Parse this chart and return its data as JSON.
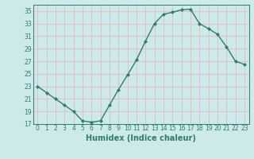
{
  "x": [
    0,
    1,
    2,
    3,
    4,
    5,
    6,
    7,
    8,
    9,
    10,
    11,
    12,
    13,
    14,
    15,
    16,
    17,
    18,
    19,
    20,
    21,
    22,
    23
  ],
  "y": [
    23,
    22,
    21,
    20,
    19,
    17.5,
    17.3,
    17.5,
    20,
    22.5,
    24.8,
    27.2,
    30.2,
    33,
    34.5,
    34.8,
    35.2,
    35.3,
    33,
    32.2,
    31.3,
    29.3,
    27,
    26.5
  ],
  "line_color": "#2d7d6e",
  "marker_color": "#2d7d6e",
  "bg_color": "#cceaea",
  "grid_color": "#e8b8b8",
  "xlabel": "Humidex (Indice chaleur)",
  "ylabel": "",
  "ylim": [
    17,
    36
  ],
  "xlim": [
    -0.5,
    23.5
  ],
  "yticks": [
    17,
    19,
    21,
    23,
    25,
    27,
    29,
    31,
    33,
    35
  ],
  "xticks": [
    0,
    1,
    2,
    3,
    4,
    5,
    6,
    7,
    8,
    9,
    10,
    11,
    12,
    13,
    14,
    15,
    16,
    17,
    18,
    19,
    20,
    21,
    22,
    23
  ],
  "tick_fontsize": 5.5,
  "label_fontsize": 7,
  "linewidth": 1.0,
  "markersize": 2.2
}
